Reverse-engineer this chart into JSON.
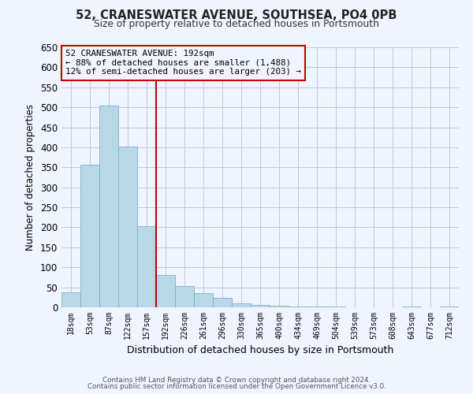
{
  "title": "52, CRANESWATER AVENUE, SOUTHSEA, PO4 0PB",
  "subtitle": "Size of property relative to detached houses in Portsmouth",
  "xlabel": "Distribution of detached houses by size in Portsmouth",
  "ylabel": "Number of detached properties",
  "footer1": "Contains HM Land Registry data © Crown copyright and database right 2024.",
  "footer2": "Contains public sector information licensed under the Open Government Licence v3.0.",
  "annotation_line1": "52 CRANESWATER AVENUE: 192sqm",
  "annotation_line2": "← 88% of detached houses are smaller (1,488)",
  "annotation_line3": "12% of semi-detached houses are larger (203) →",
  "bin_labels": [
    "18sqm",
    "53sqm",
    "87sqm",
    "122sqm",
    "157sqm",
    "192sqm",
    "226sqm",
    "261sqm",
    "296sqm",
    "330sqm",
    "365sqm",
    "400sqm",
    "434sqm",
    "469sqm",
    "504sqm",
    "539sqm",
    "573sqm",
    "608sqm",
    "643sqm",
    "677sqm",
    "712sqm"
  ],
  "bar_values": [
    38,
    357,
    505,
    402,
    202,
    80,
    54,
    35,
    23,
    10,
    5,
    3,
    2,
    1,
    1,
    0,
    0,
    0,
    1,
    0,
    1
  ],
  "bar_color": "#b8d8e8",
  "bar_edge_color": "#7ab0cc",
  "vline_color": "#cc0000",
  "annotation_box_color": "#cc0000",
  "bg_color": "#f0f4ff",
  "grid_color": "#c0c8d8",
  "ylim": [
    0,
    650
  ],
  "yticks": [
    0,
    50,
    100,
    150,
    200,
    250,
    300,
    350,
    400,
    450,
    500,
    550,
    600,
    650
  ]
}
